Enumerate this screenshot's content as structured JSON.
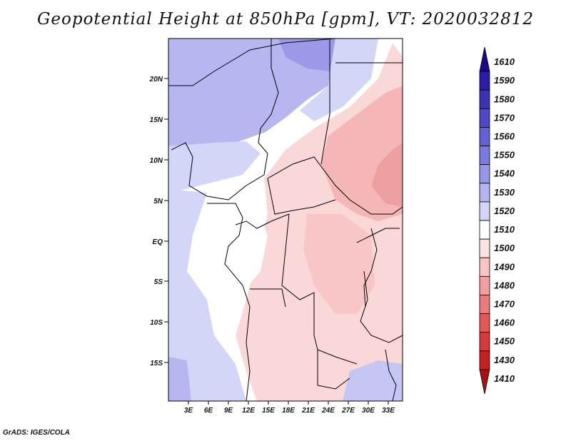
{
  "title": "Geopotential Height at 850hPa [gpm], VT: 2020032812",
  "footer": "GrADS: IGES/COLA",
  "map": {
    "variable": "Geopotential Height",
    "level": "850hPa",
    "units": "gpm",
    "valid_time": "2020032812",
    "lat_ticks": [
      "20N",
      "15N",
      "10N",
      "5N",
      "EQ",
      "5S",
      "10S",
      "15S"
    ],
    "lon_ticks": [
      "3E",
      "6E",
      "9E",
      "12E",
      "15E",
      "18E",
      "21E",
      "24E",
      "27E",
      "30E",
      "33E"
    ]
  },
  "colorbar": {
    "levels": [
      "1610",
      "1590",
      "1580",
      "1570",
      "1560",
      "1550",
      "1540",
      "1530",
      "1520",
      "1510",
      "1500",
      "1490",
      "1480",
      "1470",
      "1460",
      "1450",
      "1430",
      "1410"
    ],
    "colors": [
      "#1a0a8a",
      "#2a1ea6",
      "#3b32b8",
      "#4f48c8",
      "#6460d6",
      "#7b7ae0",
      "#9696e8",
      "#b4b4f0",
      "#d2d4f8",
      "#ffffff",
      "#fde0e0",
      "#f8c4c4",
      "#f0a0a0",
      "#e87c7c",
      "#e05858",
      "#d63a3a",
      "#c42222",
      "#a81212"
    ]
  }
}
